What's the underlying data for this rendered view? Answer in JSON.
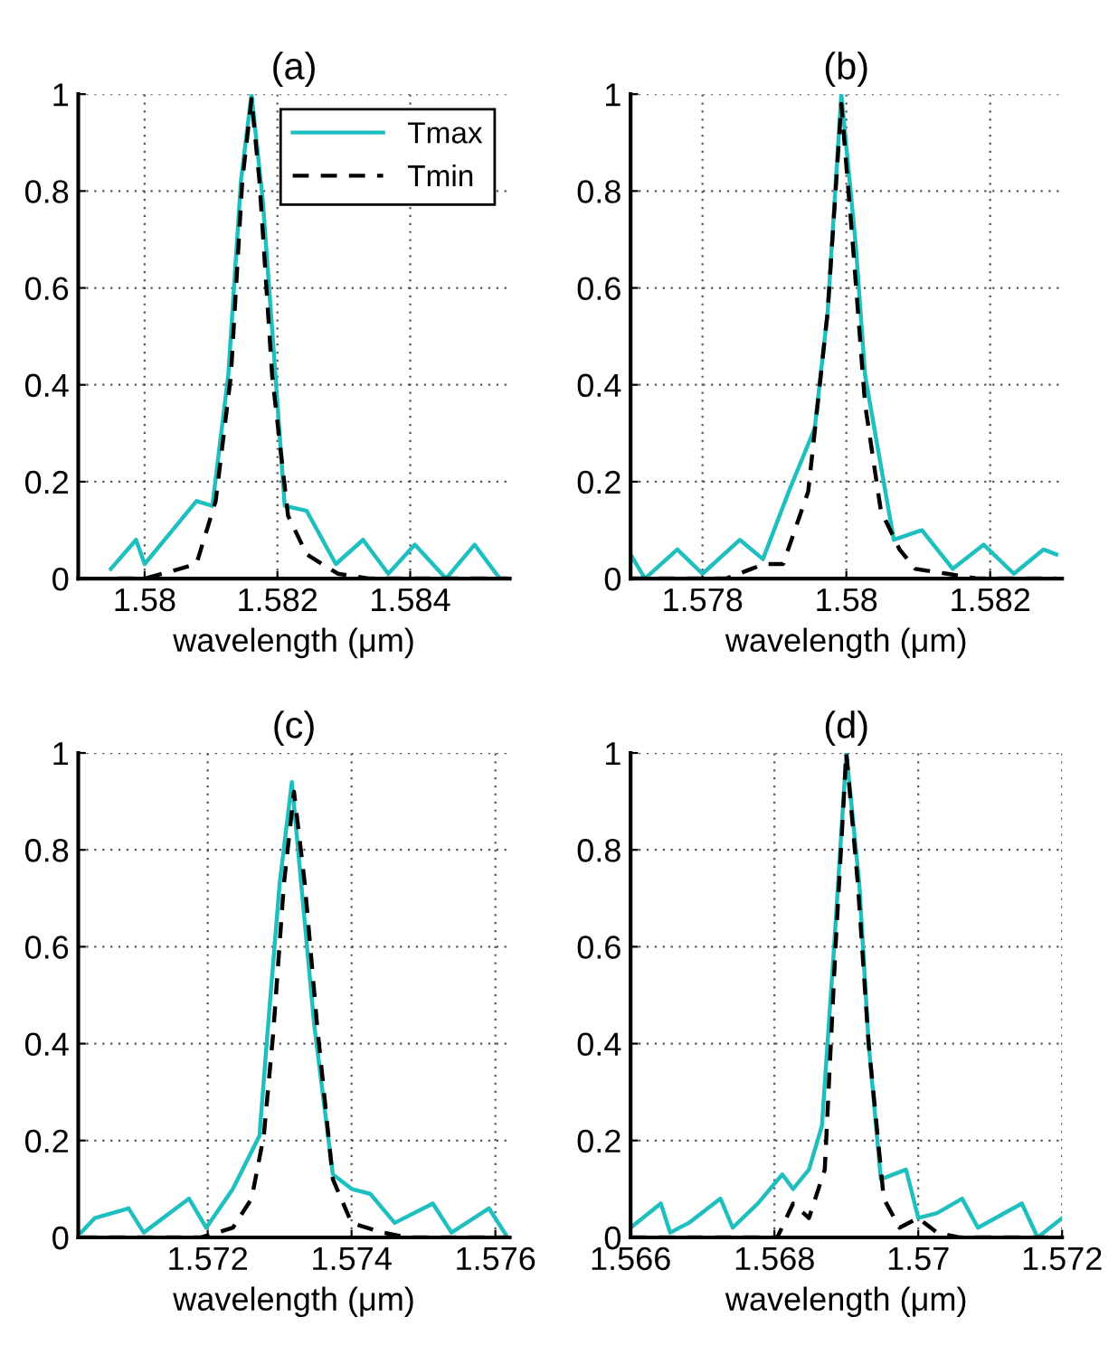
{
  "chart_data": [
    {
      "type": "line",
      "title": "(a)",
      "xlabel": "wavelength (μm)",
      "xlim": [
        1.579,
        1.5855
      ],
      "xticks": [
        1.58,
        1.582,
        1.584
      ],
      "ylim": [
        0,
        1
      ],
      "yticks": [
        0,
        0.2,
        0.4,
        0.6,
        0.8,
        1
      ],
      "grid": true,
      "legend": "top right",
      "series": [
        {
          "name": "Tmax",
          "color": "#1fbfbf",
          "line_style": "solid",
          "x": [
            1.57949,
            1.57987,
            1.58,
            1.58078,
            1.58102,
            1.58126,
            1.58145,
            1.58161,
            1.58178,
            1.58197,
            1.58211,
            1.58244,
            1.58288,
            1.58329,
            1.58367,
            1.58407,
            1.58454,
            1.58497,
            1.58535
          ],
          "values": [
            0.02,
            0.08,
            0.03,
            0.16,
            0.15,
            0.42,
            0.82,
            1.0,
            0.78,
            0.42,
            0.15,
            0.14,
            0.03,
            0.08,
            0.01,
            0.07,
            0.0,
            0.07,
            0.0
          ]
        },
        {
          "name": "Tmin",
          "color": "#000000",
          "line_style": "dashed",
          "x": [
            1.5796,
            1.58,
            1.5804,
            1.58078,
            1.58107,
            1.5813,
            1.58147,
            1.58161,
            1.58173,
            1.58192,
            1.58216,
            1.58244,
            1.58291,
            1.58339,
            1.58547
          ],
          "values": [
            0,
            0,
            0.015,
            0.03,
            0.16,
            0.42,
            0.82,
            0.99,
            0.82,
            0.42,
            0.13,
            0.05,
            0.01,
            0,
            0
          ]
        }
      ]
    },
    {
      "type": "line",
      "title": "(b)",
      "xlabel": "wavelength (μm)",
      "xlim": [
        1.577,
        1.583
      ],
      "xticks": [
        1.578,
        1.58,
        1.582
      ],
      "ylim": [
        0,
        1
      ],
      "yticks": [
        0,
        0.2,
        0.4,
        0.6,
        0.8,
        1
      ],
      "grid": true,
      "series": [
        {
          "color": "#1fbfbf",
          "line_style": "solid",
          "x": [
            1.577,
            1.5772,
            1.57765,
            1.578,
            1.57852,
            1.57884,
            1.5792,
            1.57956,
            1.57974,
            1.57993,
            1.58013,
            1.58026,
            1.58066,
            1.58105,
            1.58148,
            1.58191,
            1.58233,
            1.58274,
            1.58292
          ],
          "values": [
            0.05,
            0.0,
            0.06,
            0.01,
            0.08,
            0.04,
            0.18,
            0.31,
            0.55,
            1.0,
            0.69,
            0.42,
            0.08,
            0.1,
            0.02,
            0.07,
            0.01,
            0.06,
            0.05
          ]
        },
        {
          "color": "#000000",
          "line_style": "dashed",
          "x": [
            1.577,
            1.57833,
            1.57868,
            1.57886,
            1.57912,
            1.57947,
            1.57974,
            1.57993,
            1.58009,
            1.58026,
            1.58048,
            1.58074,
            1.58096,
            1.5814,
            1.58183,
            1.58292
          ],
          "values": [
            0,
            0,
            0.02,
            0.03,
            0.03,
            0.18,
            0.55,
            0.98,
            0.69,
            0.36,
            0.14,
            0.06,
            0.02,
            0.01,
            0,
            0
          ]
        }
      ]
    },
    {
      "type": "line",
      "title": "(c)",
      "xlabel": "wavelength (μm)",
      "xlim": [
        1.5702,
        1.5762
      ],
      "xticks": [
        1.572,
        1.574,
        1.576
      ],
      "ylim": [
        0,
        1
      ],
      "yticks": [
        0,
        0.2,
        0.4,
        0.6,
        0.8,
        1
      ],
      "grid": true,
      "series": [
        {
          "color": "#1fbfbf",
          "line_style": "solid",
          "x": [
            1.57024,
            1.57043,
            1.5709,
            1.57111,
            1.57174,
            1.57198,
            1.57235,
            1.57272,
            1.57283,
            1.573,
            1.57317,
            1.5733,
            1.57348,
            1.57374,
            1.574,
            1.57426,
            1.5746,
            1.57513,
            1.57539,
            1.57591,
            1.57617
          ],
          "values": [
            0.01,
            0.04,
            0.06,
            0.01,
            0.08,
            0.02,
            0.1,
            0.21,
            0.42,
            0.73,
            0.94,
            0.73,
            0.44,
            0.13,
            0.1,
            0.09,
            0.03,
            0.07,
            0.01,
            0.06,
            0
          ]
        },
        {
          "color": "#000000",
          "line_style": "dashed",
          "x": [
            1.57024,
            1.57191,
            1.57235,
            1.57261,
            1.57278,
            1.57291,
            1.57306,
            1.5732,
            1.57335,
            1.57352,
            1.57374,
            1.574,
            1.57443,
            1.57478,
            1.57617
          ],
          "values": [
            0,
            0,
            0.02,
            0.08,
            0.21,
            0.42,
            0.73,
            0.92,
            0.73,
            0.44,
            0.12,
            0.03,
            0.01,
            0,
            0
          ]
        }
      ]
    },
    {
      "type": "line",
      "title": "(d)",
      "xlabel": "wavelength (μm)",
      "xlim": [
        1.566,
        1.572
      ],
      "xticks": [
        1.566,
        1.568,
        1.57,
        1.572
      ],
      "ylim": [
        0,
        1
      ],
      "yticks": [
        0,
        0.2,
        0.4,
        0.6,
        0.8,
        1
      ],
      "grid": true,
      "series": [
        {
          "color": "#1fbfbf",
          "line_style": "solid",
          "x": [
            1.566,
            1.56642,
            1.56655,
            1.56681,
            1.56725,
            1.56742,
            1.56777,
            1.56811,
            1.56826,
            1.56848,
            1.56866,
            1.56883,
            1.569,
            1.56918,
            1.56931,
            1.56948,
            1.56983,
            1.57,
            1.57026,
            1.57061,
            1.57083,
            1.57144,
            1.57166,
            1.572
          ],
          "values": [
            0.02,
            0.07,
            0.01,
            0.03,
            0.08,
            0.02,
            0.07,
            0.13,
            0.1,
            0.14,
            0.23,
            0.6,
            1.0,
            0.73,
            0.4,
            0.12,
            0.14,
            0.04,
            0.05,
            0.08,
            0.02,
            0.07,
            0.0,
            0.04
          ]
        },
        {
          "color": "#000000",
          "line_style": "dashed",
          "x": [
            1.566,
            1.56804,
            1.56826,
            1.56848,
            1.5687,
            1.56885,
            1.569,
            1.56916,
            1.56931,
            1.56952,
            1.56974,
            1.57,
            1.57026,
            1.57057,
            1.572
          ],
          "values": [
            0,
            0,
            0.07,
            0.04,
            0.14,
            0.6,
            1.0,
            0.73,
            0.4,
            0.08,
            0.02,
            0.04,
            0.01,
            0,
            0
          ]
        }
      ]
    }
  ]
}
